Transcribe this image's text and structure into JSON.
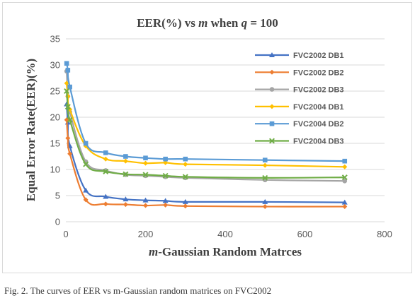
{
  "chart_data": {
    "type": "line",
    "title": "EER(%) vs m when q = 100",
    "xlabel": "m-Gaussian Random Matrces",
    "ylabel": "Equal Error Rate(EER)(%)",
    "xlim": [
      0,
      800
    ],
    "ylim": [
      0,
      35
    ],
    "xticks": [
      0,
      200,
      400,
      600,
      800
    ],
    "yticks": [
      0,
      5,
      10,
      15,
      20,
      25,
      30,
      35
    ],
    "grid": "horizontal",
    "legend_position": "right",
    "x": [
      2,
      5,
      10,
      50,
      100,
      150,
      200,
      250,
      300,
      500,
      700
    ],
    "series": [
      {
        "name": "FVC2002 DB1",
        "color": "#4472c4",
        "marker": "triangle",
        "values": [
          22.5,
          19.0,
          14.5,
          6.0,
          4.8,
          4.3,
          4.1,
          4.0,
          3.8,
          3.8,
          3.7
        ]
      },
      {
        "name": "FVC2002 DB2",
        "color": "#ed7d31",
        "marker": "diamond",
        "values": [
          19.5,
          16.0,
          13.0,
          4.2,
          3.4,
          3.3,
          3.1,
          3.2,
          3.0,
          2.9,
          2.9
        ]
      },
      {
        "name": "FVC2002 DB3",
        "color": "#a5a5a5",
        "marker": "circle",
        "values": [
          28.8,
          24.0,
          21.0,
          11.5,
          9.8,
          9.0,
          8.8,
          8.6,
          8.4,
          8.0,
          7.8
        ]
      },
      {
        "name": "FVC2004 DB1",
        "color": "#ffc000",
        "marker": "diamond",
        "values": [
          26.5,
          24.0,
          21.5,
          14.5,
          12.0,
          11.6,
          11.2,
          11.3,
          11.0,
          10.8,
          10.5
        ]
      },
      {
        "name": "FVC2004 DB2",
        "color": "#5b9bd5",
        "marker": "square",
        "values": [
          30.3,
          29.0,
          25.8,
          15.0,
          13.2,
          12.5,
          12.2,
          12.0,
          12.0,
          11.8,
          11.6
        ]
      },
      {
        "name": "FVC2004 DB3",
        "color": "#70ad47",
        "marker": "x",
        "values": [
          25.0,
          22.0,
          19.5,
          11.0,
          9.6,
          9.1,
          9.0,
          8.8,
          8.6,
          8.4,
          8.5
        ]
      }
    ]
  },
  "caption": "Fig. 2. The curves of EER vs m-Gaussian random matrices on FVC2002"
}
